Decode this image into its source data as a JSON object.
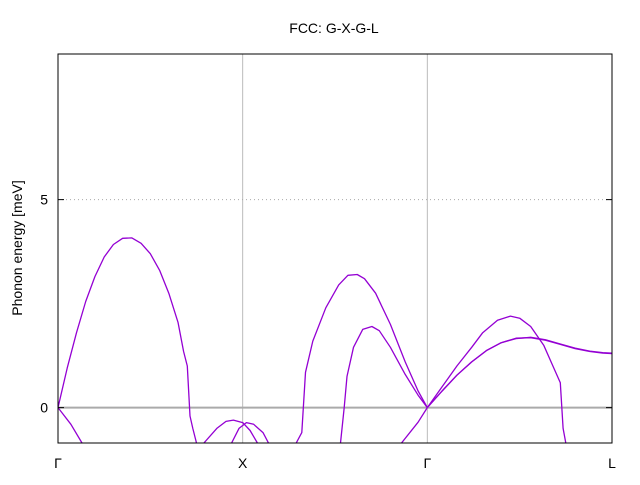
{
  "chart_data": {
    "type": "line",
    "title": "FCC: G-X-G-L",
    "xlabel": "",
    "ylabel": "Phonon energy [meV]",
    "xlim": [
      0,
      3
    ],
    "ylim": [
      -0.85,
      8.5
    ],
    "grid": {
      "x": true,
      "y_dotted_at": [
        5
      ]
    },
    "x_ticks": [
      {
        "value": 0,
        "label": "Γ"
      },
      {
        "value": 1,
        "label": "X"
      },
      {
        "value": 2,
        "label": "Γ"
      },
      {
        "value": 3,
        "label": "L"
      }
    ],
    "y_ticks": [
      {
        "value": 0,
        "label": "0"
      },
      {
        "value": 5,
        "label": "5"
      }
    ],
    "zero_line": 0,
    "line_color": "#9400d3",
    "series": [
      {
        "points": [
          [
            0.0,
            0.0
          ],
          [
            0.05,
            0.95
          ],
          [
            0.1,
            1.8
          ],
          [
            0.15,
            2.55
          ],
          [
            0.2,
            3.15
          ],
          [
            0.25,
            3.62
          ],
          [
            0.3,
            3.92
          ],
          [
            0.35,
            4.07
          ],
          [
            0.4,
            4.08
          ],
          [
            0.45,
            3.95
          ],
          [
            0.5,
            3.7
          ],
          [
            0.55,
            3.3
          ],
          [
            0.6,
            2.75
          ],
          [
            0.65,
            2.05
          ],
          [
            0.68,
            1.35
          ],
          [
            0.7,
            1.0
          ],
          [
            0.715,
            -0.2
          ],
          [
            0.73,
            -0.5
          ],
          [
            0.75,
            -0.85
          ]
        ]
      },
      {
        "points": [
          [
            0.0,
            0.0
          ],
          [
            0.07,
            -0.4
          ],
          [
            0.13,
            -0.85
          ]
        ]
      },
      {
        "points": [
          [
            0.79,
            -0.85
          ],
          [
            0.86,
            -0.5
          ],
          [
            0.91,
            -0.33
          ],
          [
            0.95,
            -0.3
          ],
          [
            1.0,
            -0.36
          ],
          [
            1.04,
            -0.55
          ],
          [
            1.08,
            -0.85
          ]
        ]
      },
      {
        "points": [
          [
            0.94,
            -0.85
          ],
          [
            0.98,
            -0.5
          ],
          [
            1.02,
            -0.36
          ],
          [
            1.06,
            -0.4
          ],
          [
            1.11,
            -0.6
          ],
          [
            1.14,
            -0.85
          ]
        ]
      },
      {
        "points": [
          [
            1.29,
            -0.85
          ],
          [
            1.32,
            -0.6
          ],
          [
            1.34,
            0.85
          ],
          [
            1.38,
            1.6
          ],
          [
            1.45,
            2.4
          ],
          [
            1.52,
            2.95
          ],
          [
            1.57,
            3.18
          ],
          [
            1.62,
            3.2
          ],
          [
            1.66,
            3.1
          ],
          [
            1.72,
            2.75
          ],
          [
            1.8,
            2.0
          ],
          [
            1.88,
            1.1
          ],
          [
            1.95,
            0.4
          ],
          [
            2.0,
            0.0
          ]
        ]
      },
      {
        "points": [
          [
            1.53,
            -0.85
          ],
          [
            1.55,
            0.0
          ],
          [
            1.565,
            0.75
          ],
          [
            1.6,
            1.45
          ],
          [
            1.65,
            1.88
          ],
          [
            1.7,
            1.95
          ],
          [
            1.74,
            1.85
          ],
          [
            1.8,
            1.45
          ],
          [
            1.88,
            0.8
          ],
          [
            1.95,
            0.3
          ],
          [
            2.0,
            0.0
          ]
        ]
      },
      {
        "points": [
          [
            1.86,
            -0.85
          ],
          [
            1.95,
            -0.35
          ],
          [
            2.0,
            0.0
          ]
        ]
      },
      {
        "points": [
          [
            2.0,
            0.0
          ],
          [
            2.08,
            0.5
          ],
          [
            2.16,
            1.0
          ],
          [
            2.24,
            1.45
          ],
          [
            2.3,
            1.8
          ],
          [
            2.38,
            2.1
          ],
          [
            2.45,
            2.2
          ],
          [
            2.5,
            2.15
          ],
          [
            2.56,
            1.95
          ],
          [
            2.63,
            1.5
          ],
          [
            2.68,
            1.0
          ],
          [
            2.72,
            0.6
          ],
          [
            2.735,
            -0.5
          ],
          [
            2.75,
            -0.85
          ]
        ]
      },
      {
        "points": [
          [
            2.0,
            0.0
          ],
          [
            2.08,
            0.4
          ],
          [
            2.16,
            0.78
          ],
          [
            2.24,
            1.1
          ],
          [
            2.32,
            1.37
          ],
          [
            2.4,
            1.56
          ],
          [
            2.48,
            1.67
          ],
          [
            2.56,
            1.68
          ],
          [
            2.64,
            1.62
          ],
          [
            2.72,
            1.52
          ],
          [
            2.8,
            1.42
          ],
          [
            2.88,
            1.35
          ],
          [
            2.95,
            1.31
          ],
          [
            3.0,
            1.3
          ]
        ]
      },
      {
        "points": [
          [
            2.0,
            0.0
          ],
          [
            2.08,
            0.4
          ],
          [
            2.16,
            0.78
          ],
          [
            2.24,
            1.1
          ],
          [
            2.32,
            1.37
          ],
          [
            2.4,
            1.56
          ],
          [
            2.48,
            1.66
          ],
          [
            2.56,
            1.69
          ],
          [
            2.64,
            1.63
          ],
          [
            2.72,
            1.53
          ],
          [
            2.8,
            1.43
          ],
          [
            2.88,
            1.36
          ],
          [
            2.95,
            1.32
          ],
          [
            3.0,
            1.31
          ]
        ]
      }
    ]
  }
}
